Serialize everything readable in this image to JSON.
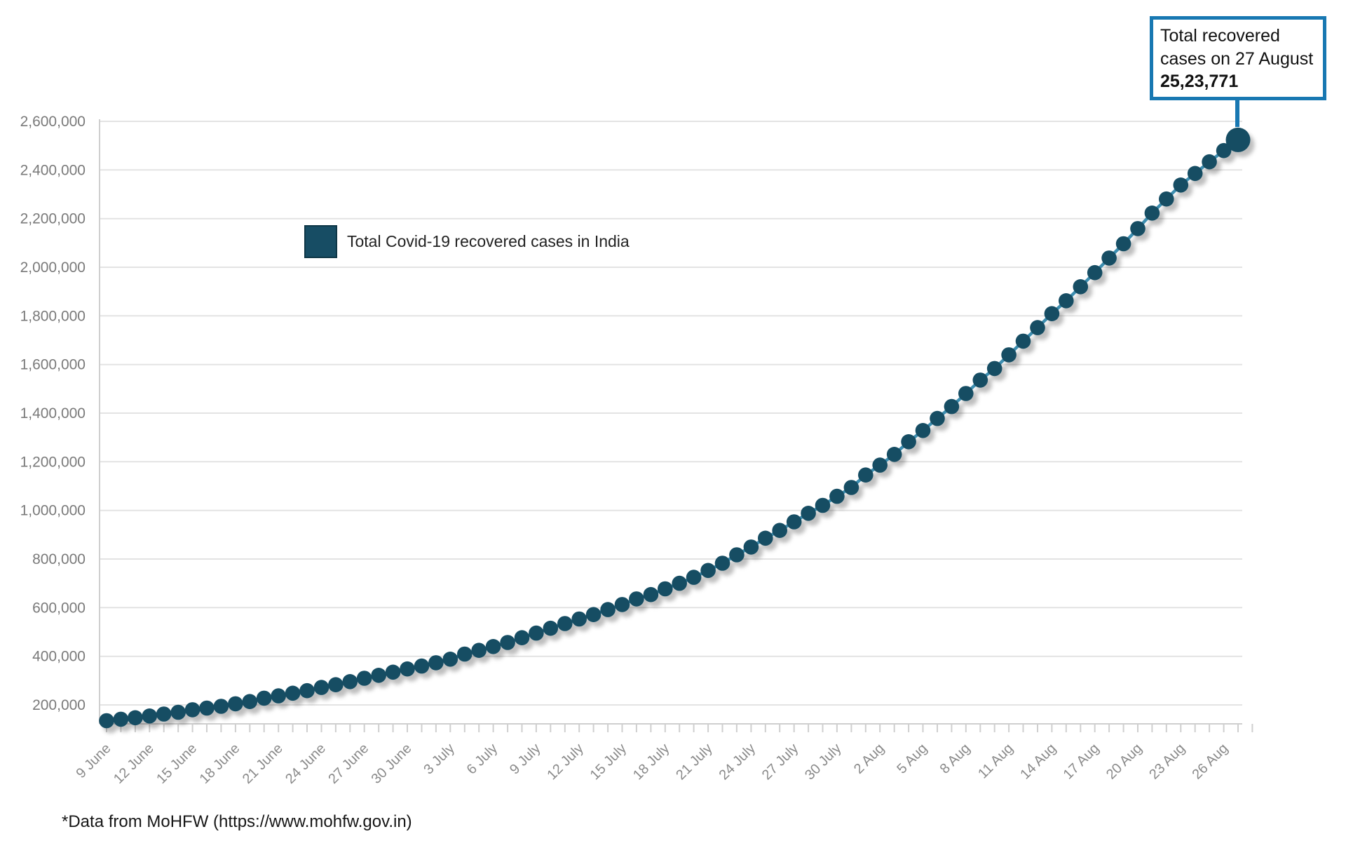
{
  "annotation": {
    "label": "Total recovered cases on 27 August",
    "value": "25,23,771"
  },
  "legend": {
    "label": "Total Covid-19 recovered cases in India"
  },
  "footer": {
    "note": "*Data from MoHFW (https://www.mohfw.gov.in)"
  },
  "colors": {
    "point": "#174d64",
    "line": "#3c8eb0",
    "annotation_blue": "#1878b2",
    "grid": "#e3e3e3",
    "axis": "#cfcfcf",
    "y_label": "#7a7a7a",
    "x_label": "#8a8a8a"
  },
  "chart_data": {
    "type": "line",
    "title": "",
    "series_name": "Total Covid-19 recovered cases in India",
    "legend_position": "top-left-inside",
    "grid": "horizontal",
    "x_tick_every": 3,
    "ylim": [
      120000,
      2600000
    ],
    "y_ticks": [
      200000,
      400000,
      600000,
      800000,
      1000000,
      1200000,
      1400000,
      1600000,
      1800000,
      2000000,
      2200000,
      2400000,
      2600000
    ],
    "x": [
      "9 June",
      "10 June",
      "11 June",
      "12 June",
      "13 June",
      "14 June",
      "15 June",
      "16 June",
      "17 June",
      "18 June",
      "19 June",
      "20 June",
      "21 June",
      "22 June",
      "23 June",
      "24 June",
      "25 June",
      "26 June",
      "27 June",
      "28 June",
      "29 June",
      "30 June",
      "1 July",
      "2 July",
      "3 July",
      "4 July",
      "5 July",
      "6 July",
      "7 July",
      "8 July",
      "9 July",
      "10 July",
      "11 July",
      "12 July",
      "13 July",
      "14 July",
      "15 July",
      "16 July",
      "17 July",
      "18 July",
      "19 July",
      "20 July",
      "21 July",
      "22 July",
      "23 July",
      "24 July",
      "25 July",
      "26 July",
      "27 July",
      "28 July",
      "29 July",
      "30 July",
      "31 July",
      "1 Aug",
      "2 Aug",
      "3 Aug",
      "4 Aug",
      "5 Aug",
      "6 Aug",
      "7 Aug",
      "8 Aug",
      "9 Aug",
      "10 Aug",
      "11 Aug",
      "12 Aug",
      "13 Aug",
      "14 Aug",
      "15 Aug",
      "16 Aug",
      "17 Aug",
      "18 Aug",
      "19 Aug",
      "20 Aug",
      "21 Aug",
      "22 Aug",
      "23 Aug",
      "24 Aug",
      "25 Aug",
      "26 Aug",
      "27 Aug"
    ],
    "values": [
      135206,
      141029,
      147195,
      154330,
      162379,
      169798,
      180013,
      186935,
      194325,
      204711,
      213831,
      227756,
      237196,
      248190,
      258685,
      271697,
      283168,
      295881,
      309713,
      321723,
      334822,
      347979,
      359860,
      373375,
      388135,
      409083,
      424433,
      439934,
      456831,
      476378,
      495516,
      515386,
      534620,
      553471,
      571460,
      592032,
      612815,
      635757,
      653751,
      677423,
      700087,
      724578,
      753050,
      782607,
      817209,
      849432,
      885577,
      917568,
      952744,
      988029,
      1020582,
      1057806,
      1094374,
      1145630,
      1186203,
      1230510,
      1282215,
      1328336,
      1378105,
      1427005,
      1480884,
      1535743,
      1583489,
      1639599,
      1695982,
      1751555,
      1808936,
      1862258,
      1919842,
      1977779,
      2037816,
      2096664,
      2158946,
      2222577,
      2280566,
      2338035,
      2385804,
      2433685,
      2479605,
      2523771
    ],
    "highlighted_point": {
      "x": "27 Aug",
      "value": 2523771
    }
  }
}
